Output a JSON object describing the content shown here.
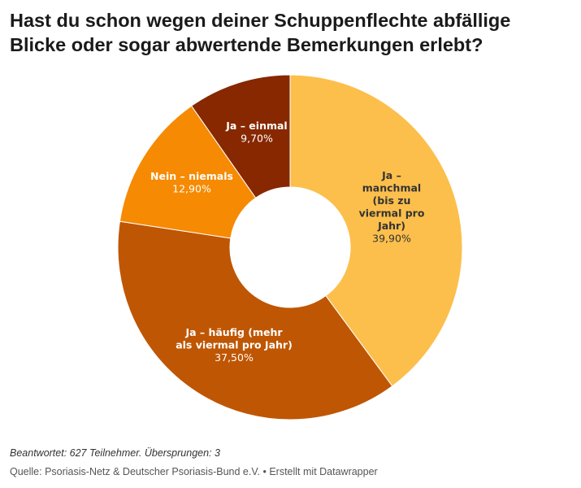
{
  "chart_data": {
    "type": "pie",
    "variant": "donut",
    "title": "Hast du schon wegen deiner Schuppenflechte abfällige Blicke oder sogar abwertende Bemerkungen erlebt?",
    "slices": [
      {
        "label": "Ja – manchmal (bis zu viermal pro Jahr)",
        "value": 39.9,
        "value_label": "39,90%",
        "color": "#fcbf4c",
        "text_color": "#333333"
      },
      {
        "label": "Ja – häufig (mehr als viermal pro Jahr)",
        "value": 37.5,
        "value_label": "37,50%",
        "color": "#bf5603",
        "text_color": "#ffffff"
      },
      {
        "label": "Nein – niemals",
        "value": 12.9,
        "value_label": "12,90%",
        "color": "#f68a02",
        "text_color": "#ffffff"
      },
      {
        "label": "Ja – einmal",
        "value": 9.7,
        "value_label": "9,70%",
        "color": "#872800",
        "text_color": "#ffffff"
      }
    ],
    "start": "top",
    "direction": "clockwise"
  },
  "footer": {
    "note": "Beantwortet: 627 Teilnehmer. Übersprungen: 3",
    "source": "Quelle: Psoriasis-Netz & Deutscher Psoriasis-Bund e.V. • Erstellt mit Datawrapper"
  }
}
